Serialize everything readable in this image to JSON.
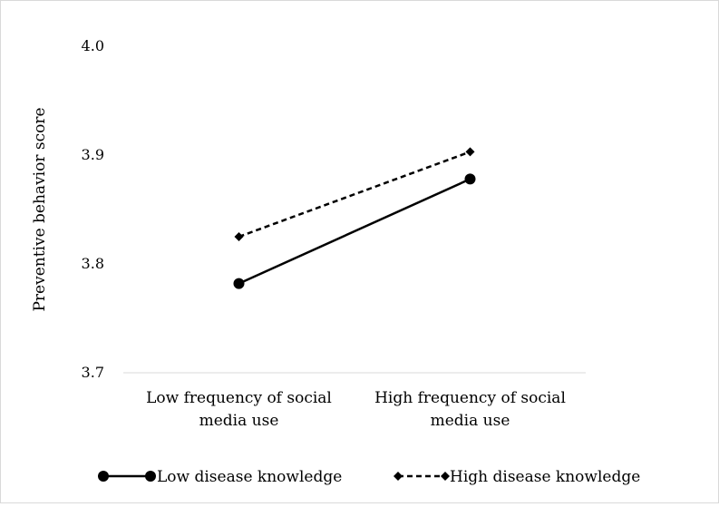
{
  "chart_data": {
    "type": "line",
    "title": "",
    "xlabel": "",
    "ylabel": "Preventive behavior score",
    "categories": [
      [
        "Low frequency of social",
        "media use"
      ],
      [
        "High frequency of social",
        "media use"
      ]
    ],
    "ylim": [
      3.7,
      4.0
    ],
    "yticks": [
      "3.7",
      "3.8",
      "3.9",
      "4.0"
    ],
    "grid": false,
    "legend_position": "bottom",
    "series": [
      {
        "name": "Low disease knowledge",
        "values": [
          3.782,
          3.878
        ],
        "line_style": "solid",
        "marker": "circle",
        "color": "#000000"
      },
      {
        "name": "High disease knowledge",
        "values": [
          3.825,
          3.903
        ],
        "line_style": "dashed",
        "marker": "diamond",
        "color": "#000000"
      }
    ]
  }
}
